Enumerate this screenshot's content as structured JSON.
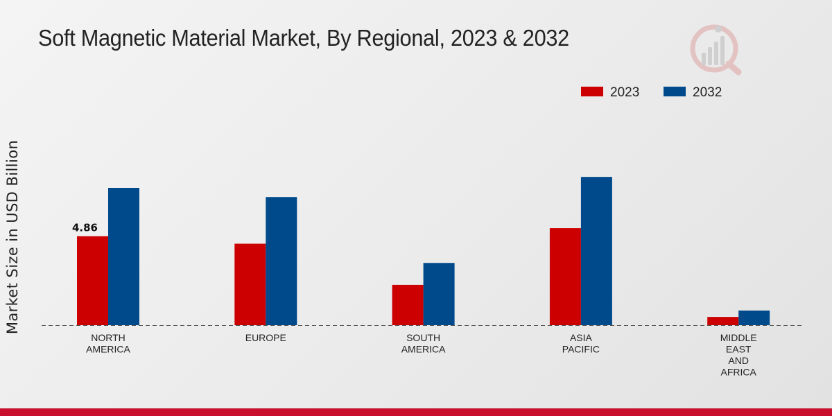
{
  "chart_data": {
    "type": "bar",
    "title": "Soft Magnetic Material Market, By Regional, 2023 & 2032",
    "ylabel": "Market Size in USD Billion",
    "xlabel": "",
    "categories": [
      [
        "NORTH",
        "AMERICA"
      ],
      [
        "EUROPE"
      ],
      [
        "SOUTH",
        "AMERICA"
      ],
      [
        "ASIA",
        "PACIFIC"
      ],
      [
        "MIDDLE",
        "EAST",
        "AND",
        "AFRICA"
      ]
    ],
    "series": [
      {
        "name": "2023",
        "color": "#cc0000",
        "values": [
          4.86,
          4.45,
          2.2,
          5.3,
          0.45
        ]
      },
      {
        "name": "2032",
        "color": "#004a8c",
        "values": [
          7.5,
          7.0,
          3.4,
          8.1,
          0.8
        ]
      }
    ],
    "data_labels": [
      {
        "series": 0,
        "index": 0,
        "text": "4.86"
      }
    ],
    "ylim": [
      0,
      10
    ],
    "grid": false,
    "legend_position": "top-right",
    "baseline": "dashed"
  }
}
